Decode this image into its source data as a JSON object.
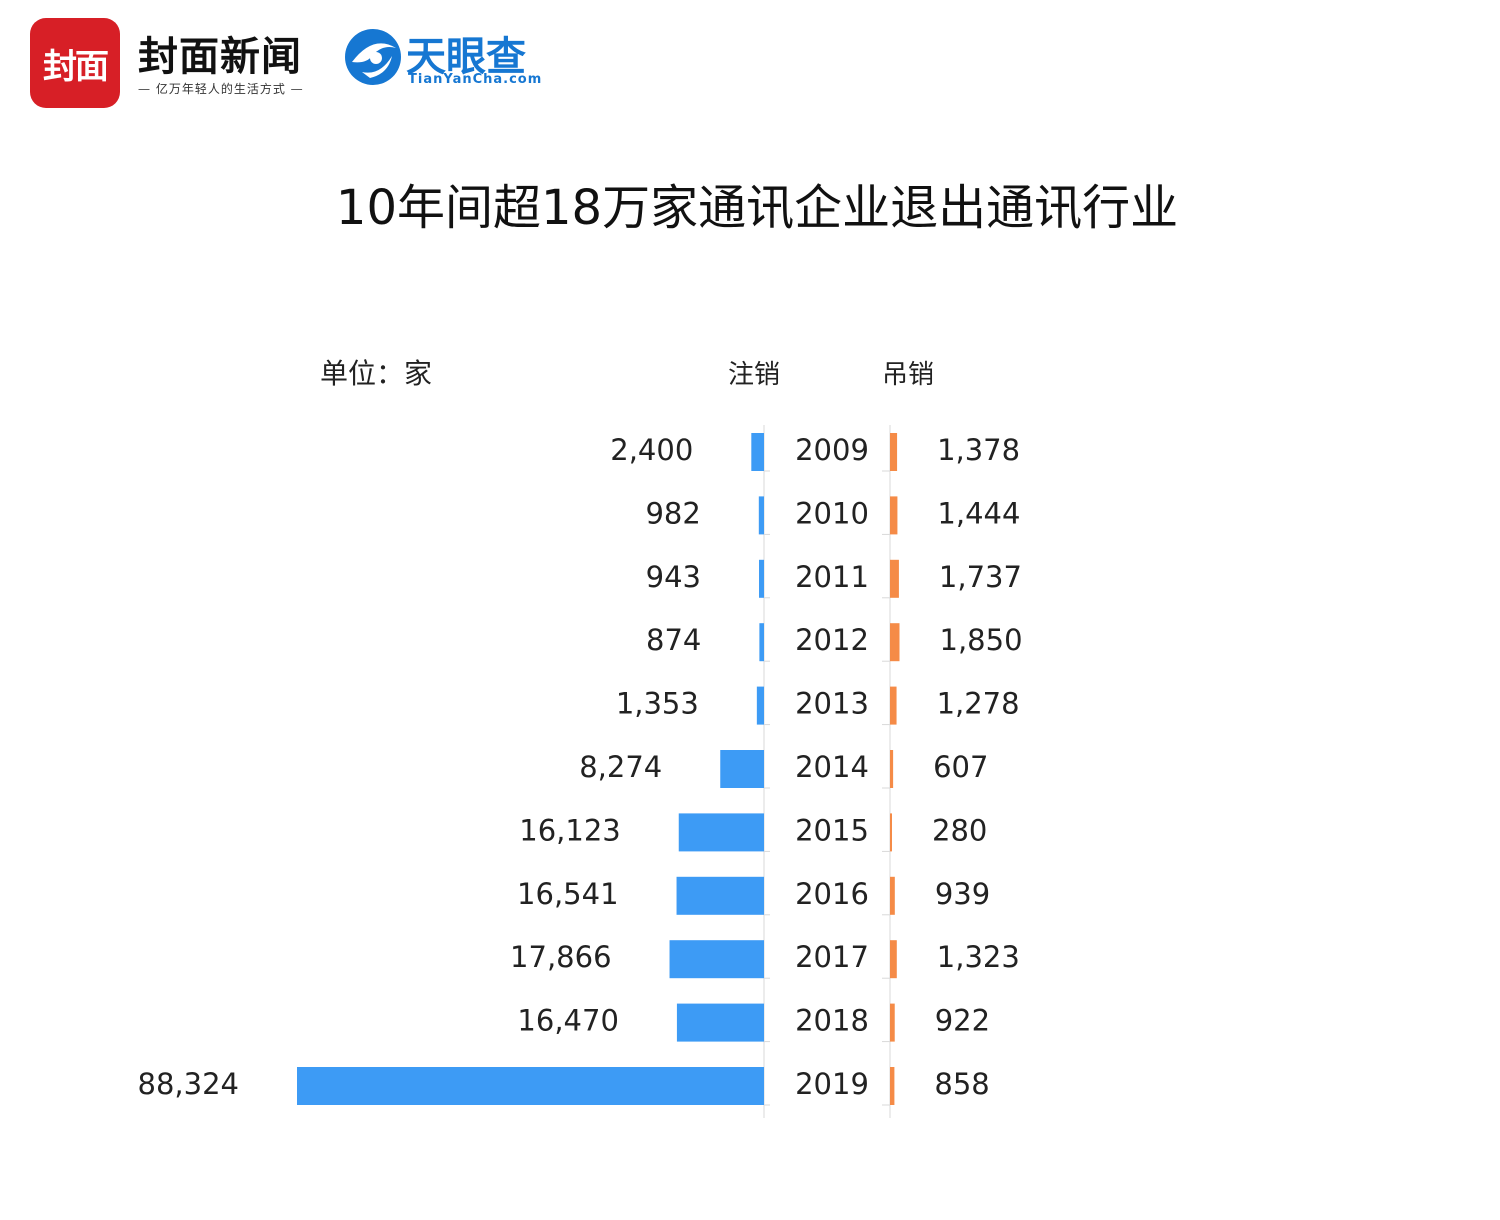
{
  "header": {
    "fengmian_logo_text": "封面",
    "fengmian_name": "封面新闻",
    "fengmian_slogan": "— 亿万年轻人的生活方式 —",
    "tianyancha_name": "天眼查",
    "tianyancha_domain": "TianYanCha.com"
  },
  "chart_data": {
    "type": "bar",
    "title": "10年间超18万家通讯企业退出通讯行业",
    "unit_label": "单位：家",
    "categories": [
      "2009",
      "2010",
      "2011",
      "2012",
      "2013",
      "2014",
      "2015",
      "2016",
      "2017",
      "2018",
      "2019"
    ],
    "series": [
      {
        "name": "注销",
        "color": "#3d9bf5",
        "values": [
          2400,
          982,
          943,
          874,
          1353,
          8274,
          16123,
          16541,
          17866,
          16470,
          88324
        ],
        "labels": [
          "2,400",
          "982",
          "943",
          "874",
          "1,353",
          "8,274",
          "16,123",
          "16,541",
          "17,866",
          "16,470",
          "88,324"
        ]
      },
      {
        "name": "吊销",
        "color": "#f58b47",
        "values": [
          1378,
          1444,
          1737,
          1850,
          1278,
          607,
          280,
          939,
          1323,
          922,
          858
        ],
        "labels": [
          "1,378",
          "1,444",
          "1,737",
          "1,850",
          "1,278",
          "607",
          "280",
          "939",
          "1,323",
          "922",
          "858"
        ]
      }
    ],
    "layout": "butterfly",
    "grid": false
  }
}
